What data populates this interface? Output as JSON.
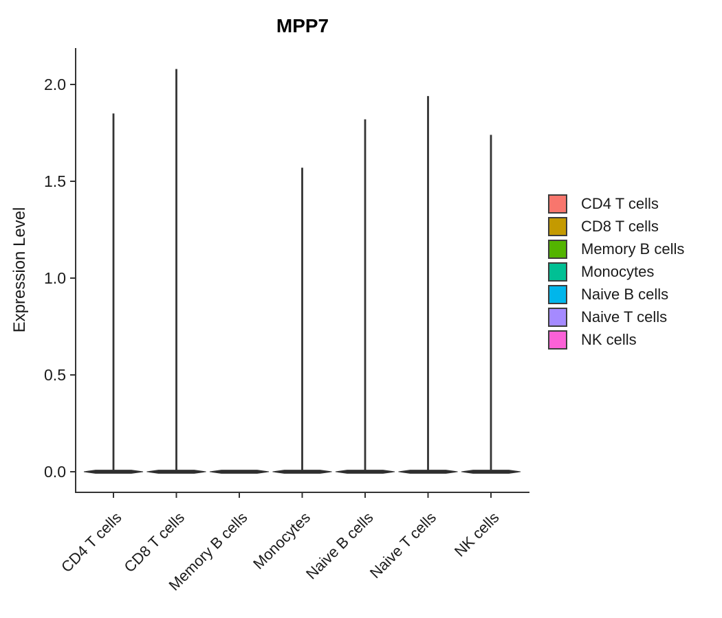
{
  "figure": {
    "title": "MPP7",
    "background": "#ffffff"
  },
  "chart_data": {
    "type": "violin",
    "title": "MPP7",
    "xlabel": "",
    "ylabel": "Expression Level",
    "categories": [
      "CD4 T cells",
      "CD8 T cells",
      "Memory B cells",
      "Monocytes",
      "Naive B cells",
      "Naive T cells",
      "NK cells"
    ],
    "series": [
      {
        "name": "max expression (violin spike top)",
        "values": [
          1.85,
          2.08,
          0,
          1.57,
          1.82,
          1.94,
          1.74
        ]
      }
    ],
    "violin_shape_note": "density mass concentrated at 0 (flat dark bar at baseline) with a thin vertical spike rising to the max value; Memory B cells has no spike",
    "y_tick_values": [
      0,
      0.5,
      1,
      1.5,
      2
    ],
    "y_tick_labels": [
      "0.0",
      "0.5",
      "1.0",
      "1.5",
      "2.0"
    ],
    "ylim": [
      0,
      2.19
    ],
    "grid": false,
    "axis_color": "#333333",
    "violin_outline_color": "#2e2e2e",
    "legend": {
      "position": "right",
      "entries": [
        {
          "label": "CD4 T cells",
          "color": "#F8766D"
        },
        {
          "label": "CD8 T cells",
          "color": "#C49A00"
        },
        {
          "label": "Memory B cells",
          "color": "#53B400"
        },
        {
          "label": "Monocytes",
          "color": "#00C094"
        },
        {
          "label": "Naive B cells",
          "color": "#00B6EB"
        },
        {
          "label": "Naive T cells",
          "color": "#A58AFF"
        },
        {
          "label": "NK cells",
          "color": "#FB61D7"
        }
      ]
    }
  }
}
